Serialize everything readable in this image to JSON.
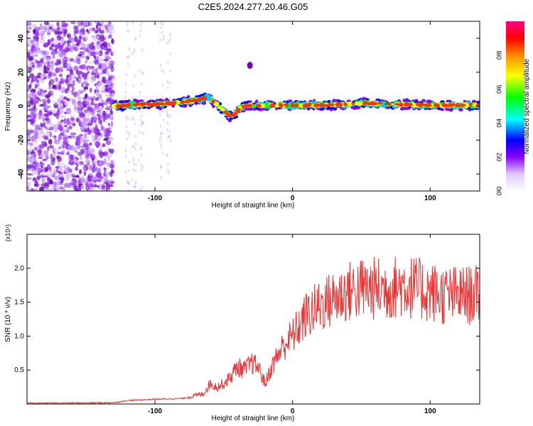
{
  "title": "C2E5.2024.277.20.46.G05",
  "chart_data": [
    {
      "type": "heatmap",
      "xlabel": "Height of straight line (km)",
      "ylabel": "Frequency (Hz)",
      "xlim": [
        -193,
        136
      ],
      "ylim": [
        -50,
        50
      ],
      "xticks": [
        -100,
        0,
        100
      ],
      "yticks": [
        -40,
        -20,
        0,
        20,
        40
      ],
      "colorbar": {
        "label": "Normalized spectral amplitude",
        "ticks": [
          "0.0",
          "0.2",
          "0.4",
          "0.6",
          "0.8"
        ],
        "range": [
          0,
          1
        ],
        "colors": [
          "#ffffff",
          "#8800ff",
          "#0000ff",
          "#00ffff",
          "#00ff00",
          "#ffff00",
          "#ff8800",
          "#ff0000",
          "#ff00aa"
        ]
      },
      "ridge": {
        "x": [
          -130,
          -120,
          -110,
          -100,
          -90,
          -80,
          -70,
          -62,
          -55,
          -50,
          -45,
          -42,
          -38,
          -35,
          -30,
          -25,
          -20,
          -10,
          0,
          10,
          20,
          30,
          40,
          50,
          60,
          70,
          80,
          90,
          100,
          110,
          120,
          130,
          136
        ],
        "y": [
          0,
          0.5,
          1,
          1,
          1.5,
          2.5,
          3.5,
          5,
          1,
          -3,
          -6,
          -5,
          -1,
          0,
          0.5,
          0.5,
          0.5,
          0.5,
          0.5,
          0.5,
          0.5,
          0.8,
          1.2,
          2,
          1.5,
          1.2,
          1,
          0.8,
          0.5,
          0.5,
          0.5,
          0.5,
          0.5
        ]
      },
      "noise_region_x": [
        -193,
        -130
      ],
      "annotation_blob": {
        "x": -31,
        "y": 24
      }
    },
    {
      "type": "line",
      "xlabel": "Height of straight line (km)",
      "ylabel": "SNR (10 * v/v)",
      "y_multiplier": "(x10⁴)",
      "xlim": [
        -193,
        136
      ],
      "ylim": [
        0,
        2.5
      ],
      "xticks": [
        -100,
        0,
        100
      ],
      "yticks": [
        "0.5",
        "1.0",
        "1.5",
        "2.0"
      ],
      "color": "#ee3333",
      "envelope": {
        "x": [
          -193,
          -150,
          -130,
          -120,
          -100,
          -80,
          -65,
          -60,
          -55,
          -50,
          -45,
          -40,
          -35,
          -30,
          -25,
          -20,
          -15,
          -10,
          -5,
          0,
          5,
          10,
          20,
          30,
          40,
          50,
          60,
          70,
          80,
          90,
          100,
          110,
          120,
          130,
          136
        ],
        "y": [
          0.01,
          0.015,
          0.02,
          0.05,
          0.07,
          0.08,
          0.15,
          0.3,
          0.25,
          0.3,
          0.4,
          0.55,
          0.5,
          0.6,
          0.55,
          0.3,
          0.55,
          0.75,
          0.9,
          1.0,
          1.15,
          1.3,
          1.45,
          1.55,
          1.65,
          1.7,
          1.7,
          1.7,
          1.75,
          1.7,
          1.65,
          1.6,
          1.6,
          1.6,
          1.6
        ]
      }
    }
  ]
}
